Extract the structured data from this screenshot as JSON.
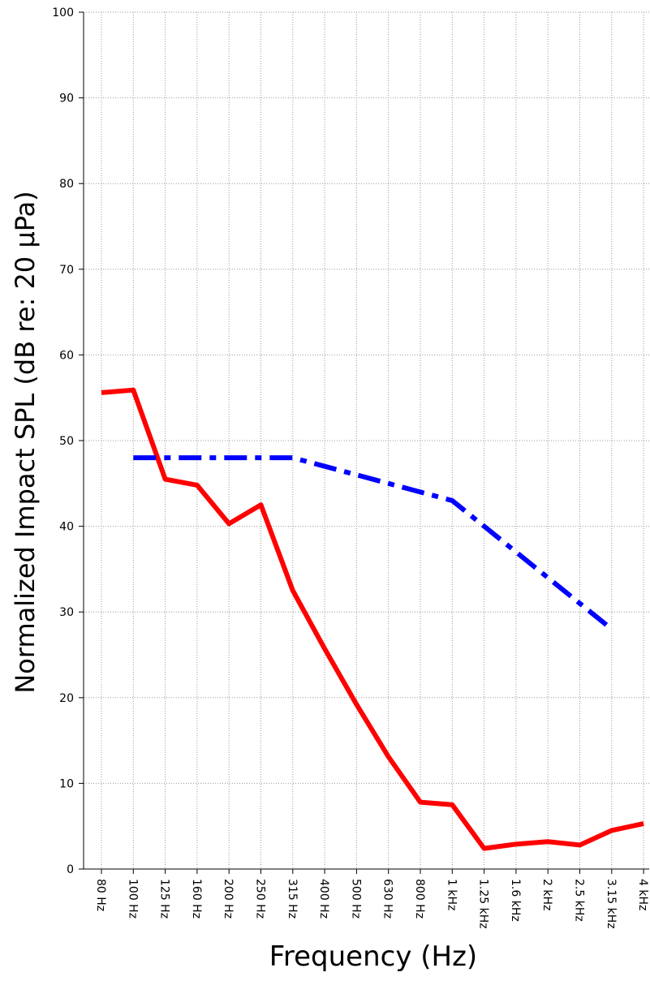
{
  "chart_data": {
    "type": "line",
    "xlabel": "Frequency (Hz)",
    "ylabel": "Normalized Impact SPL (dB re: 20 µPa)",
    "categories": [
      "80 Hz",
      "100 Hz",
      "125 Hz",
      "160 Hz",
      "200 Hz",
      "250 Hz",
      "315 Hz",
      "400 Hz",
      "500 Hz",
      "630 Hz",
      "800 Hz",
      "1 kHz",
      "1.25 kHz",
      "1.6 kHz",
      "2 kHz",
      "2.5 kHz",
      "3.15 kHz",
      "4 kHz"
    ],
    "series": [
      {
        "color": "#ff0000",
        "dash": "solid",
        "values": [
          55.6,
          55.9,
          45.5,
          44.8,
          40.3,
          42.5,
          32.5,
          25.7,
          19.2,
          13.1,
          7.8,
          7.5,
          2.4,
          2.9,
          3.2,
          2.8,
          4.5,
          5.3
        ]
      },
      {
        "color": "#0000ff",
        "dash": "dashdot",
        "values": [
          null,
          48,
          48,
          48,
          48,
          48,
          48,
          47,
          46,
          45,
          44,
          43,
          40,
          37,
          34,
          31,
          28,
          null
        ]
      }
    ],
    "ylim": [
      0,
      100
    ],
    "yticks": [
      0,
      10,
      20,
      30,
      40,
      50,
      60,
      70,
      80,
      90,
      100
    ],
    "grid": true
  }
}
